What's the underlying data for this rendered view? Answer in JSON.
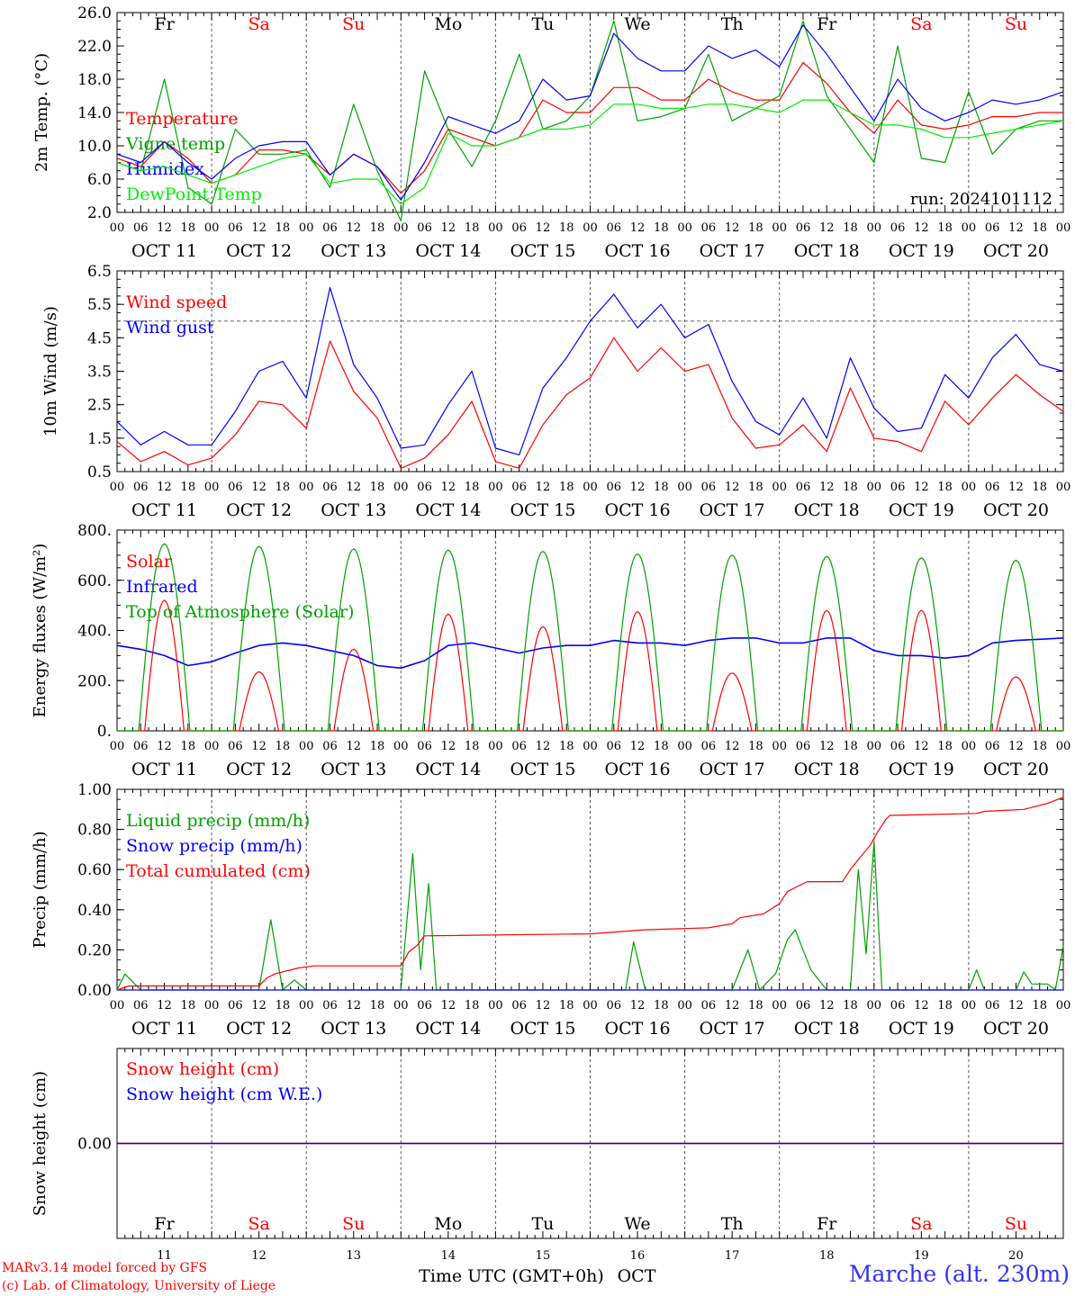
{
  "days": [
    {
      "name": "Fr",
      "weekend": false,
      "date": "OCT 11",
      "num": "11"
    },
    {
      "name": "Sa",
      "weekend": true,
      "date": "OCT 12",
      "num": "12"
    },
    {
      "name": "Su",
      "weekend": true,
      "date": "OCT 13",
      "num": "13"
    },
    {
      "name": "Mo",
      "weekend": false,
      "date": "OCT 14",
      "num": "14"
    },
    {
      "name": "Tu",
      "weekend": false,
      "date": "OCT 15",
      "num": "15"
    },
    {
      "name": "We",
      "weekend": false,
      "date": "OCT 16",
      "num": "16"
    },
    {
      "name": "Th",
      "weekend": false,
      "date": "OCT 17",
      "num": "17"
    },
    {
      "name": "Fr",
      "weekend": false,
      "date": "OCT 18",
      "num": "18"
    },
    {
      "name": "Sa",
      "weekend": true,
      "date": "OCT 19",
      "num": "19"
    },
    {
      "name": "Su",
      "weekend": true,
      "date": "OCT 20",
      "num": "20"
    }
  ],
  "hour_labels": [
    "00",
    "06",
    "12",
    "18"
  ],
  "end_hour_label": "00",
  "colors": {
    "red": "#ff0000",
    "dark_green": "#00a000",
    "blue": "#0000ff",
    "light_green": "#00ee00",
    "purple": "#8000a0",
    "weekend": "#ff0000",
    "footer_red": "#ff0000",
    "station_blue": "#3333ee"
  },
  "footer": {
    "credit_line1": "MARv3.14 model forced by GFS",
    "credit_line2": "(c) Lab. of Climatology, University of Liege",
    "xlabel": "Time UTC (GMT+0h)",
    "month": "OCT",
    "station": "Marche (alt. 230m)"
  },
  "chart_data": [
    {
      "type": "line",
      "ylabel": "2m Temp. (°C)",
      "ylim": [
        2.0,
        26.0
      ],
      "yticks": [
        "2.0",
        "6.0",
        "10.0",
        "14.0",
        "18.0",
        "22.0",
        "26.0"
      ],
      "legend_placement": "left",
      "annotation": "run: 2024101112",
      "x_unit": "hours since Oct 11 00 UTC, 6-hourly",
      "series": [
        {
          "name": "Temperature",
          "color": "red",
          "values": [
            8.5,
            7.5,
            10.5,
            8.5,
            5.5,
            6.5,
            9.5,
            9.5,
            9.0,
            6.5,
            9.0,
            7.5,
            4.3,
            7.0,
            12.0,
            11.0,
            10.0,
            11.0,
            15.5,
            14.0,
            14.0,
            17.0,
            17.0,
            15.5,
            15.5,
            18.0,
            16.5,
            15.5,
            15.5,
            20.0,
            17.5,
            14.0,
            11.5,
            15.5,
            12.5,
            12.0,
            12.5,
            13.5,
            13.5,
            14.0,
            14.0
          ]
        },
        {
          "name": "Vigne temp",
          "color": "dark_green",
          "values": [
            8.0,
            7.0,
            18.0,
            5.0,
            3.0,
            12.0,
            9.0,
            9.0,
            9.5,
            5.0,
            15.0,
            7.0,
            1.0,
            19.0,
            12.0,
            7.5,
            13.0,
            21.0,
            12.0,
            13.0,
            16.0,
            25.0,
            13.0,
            13.5,
            14.5,
            21.0,
            13.0,
            14.5,
            16.0,
            25.0,
            16.0,
            12.0,
            8.0,
            22.0,
            8.5,
            8.0,
            16.5,
            9.0,
            12.0,
            13.0,
            13.0
          ]
        },
        {
          "name": "Humidex",
          "color": "blue",
          "values": [
            9.0,
            8.0,
            10.5,
            8.0,
            6.0,
            8.5,
            10.0,
            10.5,
            10.5,
            6.5,
            9.0,
            7.5,
            3.5,
            8.0,
            13.5,
            12.5,
            11.5,
            13.0,
            18.0,
            15.5,
            16.0,
            23.5,
            20.5,
            19.0,
            19.0,
            22.0,
            20.5,
            21.5,
            19.5,
            24.5,
            21.0,
            17.0,
            13.0,
            18.0,
            14.5,
            13.0,
            14.0,
            15.5,
            15.0,
            15.5,
            16.5
          ]
        },
        {
          "name": "DewPoint Temp",
          "color": "light_green",
          "values": [
            8.0,
            7.0,
            7.5,
            6.5,
            5.5,
            6.5,
            7.5,
            8.5,
            9.0,
            5.5,
            6.0,
            6.0,
            3.0,
            5.0,
            11.5,
            10.0,
            10.0,
            11.0,
            12.0,
            12.0,
            12.5,
            15.0,
            15.0,
            14.5,
            14.5,
            15.0,
            15.0,
            14.5,
            14.0,
            15.5,
            15.5,
            14.0,
            12.5,
            12.5,
            12.0,
            11.0,
            11.0,
            11.5,
            12.0,
            12.5,
            13.0
          ]
        }
      ]
    },
    {
      "type": "line",
      "ylabel": "10m Wind (m/s)",
      "ylim": [
        0.5,
        6.5
      ],
      "yticks": [
        "0.5",
        "1.5",
        "2.5",
        "3.5",
        "4.5",
        "5.5",
        "6.5"
      ],
      "reference_line": 5.0,
      "legend_placement": "left",
      "x_unit": "hours since Oct 11 00 UTC, 6-hourly",
      "series": [
        {
          "name": "Wind speed",
          "color": "red",
          "values": [
            1.4,
            0.8,
            1.1,
            0.7,
            0.9,
            1.6,
            2.6,
            2.5,
            1.8,
            4.4,
            2.9,
            2.1,
            0.6,
            0.9,
            1.6,
            2.6,
            0.8,
            0.6,
            1.9,
            2.8,
            3.3,
            4.5,
            3.5,
            4.2,
            3.5,
            3.7,
            2.1,
            1.2,
            1.3,
            1.9,
            1.1,
            3.0,
            1.5,
            1.4,
            1.1,
            2.6,
            1.9,
            2.7,
            3.4,
            2.8,
            2.3
          ]
        },
        {
          "name": "Wind gust",
          "color": "blue",
          "values": [
            2.0,
            1.3,
            1.7,
            1.3,
            1.3,
            2.3,
            3.5,
            3.8,
            2.7,
            6.0,
            3.7,
            2.7,
            1.2,
            1.3,
            2.5,
            3.5,
            1.2,
            1.0,
            3.0,
            3.9,
            5.0,
            5.8,
            4.8,
            5.5,
            4.5,
            4.9,
            3.2,
            2.0,
            1.6,
            2.7,
            1.5,
            3.9,
            2.4,
            1.7,
            1.8,
            3.4,
            2.7,
            3.9,
            4.6,
            3.7,
            3.5
          ]
        }
      ]
    },
    {
      "type": "line",
      "ylabel": "Energy fluxes (W/m²)",
      "ylim": [
        0,
        800
      ],
      "yticks": [
        "0.",
        "200.",
        "400.",
        "600.",
        "800."
      ],
      "legend_placement": "left",
      "x_unit": "hours since Oct 11 00 UTC, 6-hourly",
      "series": [
        {
          "name": "Solar",
          "color": "red",
          "peak_hour": 12,
          "daily_peaks": [
            520,
            235,
            325,
            465,
            415,
            475,
            230,
            480,
            480,
            215
          ]
        },
        {
          "name": "Infrared",
          "color": "blue",
          "values": [
            340,
            325,
            300,
            260,
            275,
            310,
            340,
            350,
            340,
            320,
            300,
            260,
            250,
            280,
            340,
            350,
            330,
            310,
            330,
            340,
            340,
            360,
            350,
            350,
            340,
            360,
            370,
            370,
            350,
            350,
            370,
            370,
            320,
            300,
            300,
            290,
            300,
            350,
            360,
            365,
            370
          ]
        },
        {
          "name": "Top of Atmosphere (Solar)",
          "color": "dark_green",
          "peak_hour": 12,
          "daily_peaks": [
            745,
            735,
            725,
            720,
            715,
            705,
            700,
            695,
            690,
            680
          ]
        }
      ]
    },
    {
      "type": "line",
      "ylabel": "Precip (mm/h)",
      "ylim": [
        0.0,
        1.0
      ],
      "yticks": [
        "0.00",
        "0.20",
        "0.40",
        "0.60",
        "0.80",
        "1.00"
      ],
      "legend_placement": "left",
      "series": [
        {
          "name": "Liquid precip (mm/h)",
          "color": "dark_green",
          "points": [
            [
              0,
              0.0
            ],
            [
              2,
              0.08
            ],
            [
              6,
              0.0
            ],
            [
              36,
              0.0
            ],
            [
              39,
              0.35
            ],
            [
              42,
              0.0
            ],
            [
              45,
              0.05
            ],
            [
              48,
              0.0
            ],
            [
              72,
              0.0
            ],
            [
              75,
              0.68
            ],
            [
              77,
              0.1
            ],
            [
              79,
              0.53
            ],
            [
              81,
              0.0
            ],
            [
              129,
              0.0
            ],
            [
              131,
              0.24
            ],
            [
              134,
              0.0
            ],
            [
              156,
              0.0
            ],
            [
              160,
              0.2
            ],
            [
              163,
              0.0
            ],
            [
              167,
              0.08
            ],
            [
              170,
              0.25
            ],
            [
              172,
              0.3
            ],
            [
              176,
              0.1
            ],
            [
              180,
              0.0
            ],
            [
              186,
              0.0
            ],
            [
              188,
              0.6
            ],
            [
              190,
              0.18
            ],
            [
              192,
              0.74
            ],
            [
              194,
              0.0
            ],
            [
              216,
              0.0
            ],
            [
              218,
              0.1
            ],
            [
              220,
              0.0
            ],
            [
              228,
              0.0
            ],
            [
              230,
              0.09
            ],
            [
              232,
              0.03
            ],
            [
              236,
              0.03
            ],
            [
              238,
              0.0
            ],
            [
              240,
              0.22
            ]
          ]
        },
        {
          "name": "Snow precip (mm/h)",
          "color": "blue",
          "points": [
            [
              0,
              0.0
            ],
            [
              240,
              0.0
            ]
          ]
        },
        {
          "name": "Total cumulated (cm)",
          "color": "red",
          "points": [
            [
              0,
              0.0
            ],
            [
              3,
              0.02
            ],
            [
              36,
              0.02
            ],
            [
              38,
              0.06
            ],
            [
              40,
              0.08
            ],
            [
              42,
              0.09
            ],
            [
              46,
              0.11
            ],
            [
              50,
              0.12
            ],
            [
              72,
              0.12
            ],
            [
              74,
              0.19
            ],
            [
              76,
              0.22
            ],
            [
              78,
              0.27
            ],
            [
              120,
              0.28
            ],
            [
              134,
              0.3
            ],
            [
              150,
              0.31
            ],
            [
              156,
              0.33
            ],
            [
              158,
              0.36
            ],
            [
              164,
              0.38
            ],
            [
              168,
              0.43
            ],
            [
              170,
              0.49
            ],
            [
              173,
              0.52
            ],
            [
              175,
              0.54
            ],
            [
              184,
              0.54
            ],
            [
              186,
              0.6
            ],
            [
              188,
              0.65
            ],
            [
              191,
              0.72
            ],
            [
              193,
              0.79
            ],
            [
              195,
              0.85
            ],
            [
              196,
              0.87
            ],
            [
              218,
              0.88
            ],
            [
              220,
              0.89
            ],
            [
              230,
              0.9
            ],
            [
              236,
              0.93
            ],
            [
              240,
              0.96
            ]
          ]
        }
      ]
    },
    {
      "type": "line",
      "ylabel": "Snow height (cm)",
      "ylim": [
        -1.0,
        1.0
      ],
      "yticks": [
        "0.00"
      ],
      "legend_placement": "left",
      "series": [
        {
          "name": "Snow height (cm)",
          "color": "red",
          "values": [
            0.0,
            0.0
          ]
        },
        {
          "name": "Snow height (cm W.E.)",
          "color": "blue",
          "values": [
            0.0,
            0.0
          ]
        }
      ]
    }
  ]
}
